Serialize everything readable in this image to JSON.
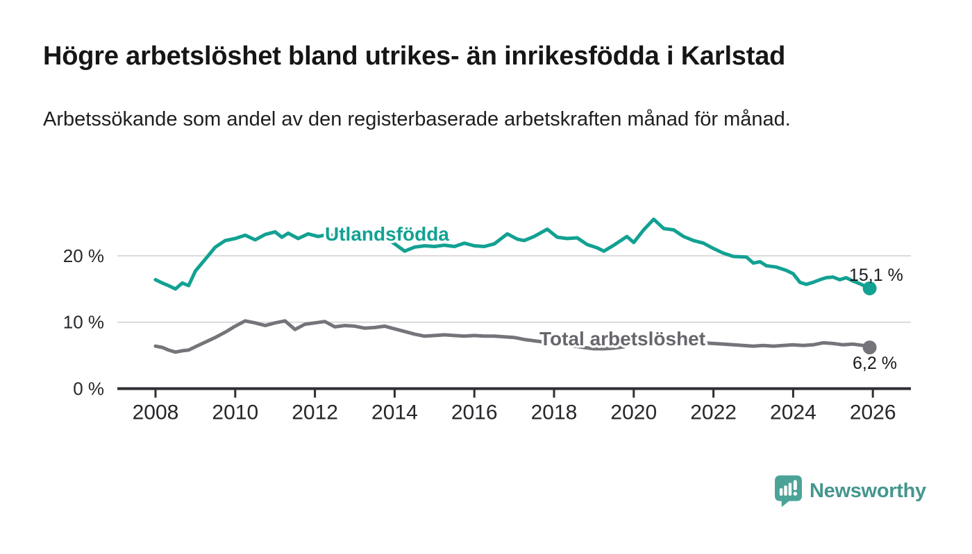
{
  "header": {
    "title": "Högre arbetslöshet bland utrikes- än inrikesfödda i Karlstad",
    "subtitle": "Arbetssökande som andel av den registerbaserade arbetskraften månad för månad."
  },
  "chart_data": {
    "type": "line",
    "unit": "%",
    "x_axis": {
      "range": [
        2007.9,
        2026.9
      ],
      "tick_labels": [
        "2008",
        "2010",
        "2012",
        "2014",
        "2016",
        "2018",
        "2020",
        "2022",
        "2024",
        "2026"
      ]
    },
    "y_axis": {
      "range": [
        0,
        27
      ],
      "ticks": [
        {
          "value": 0,
          "label": "0 %"
        },
        {
          "value": 10,
          "label": "10 %"
        },
        {
          "value": 20,
          "label": "20 %"
        }
      ],
      "grid": "horizontal"
    },
    "series": [
      {
        "name": "Utlandsfödda",
        "color": "#12A192",
        "end_value": 15.1,
        "end_label": "15,1 %",
        "points": [
          [
            2008.0,
            16.4
          ],
          [
            2008.17,
            15.9
          ],
          [
            2008.33,
            15.5
          ],
          [
            2008.5,
            15.0
          ],
          [
            2008.67,
            15.9
          ],
          [
            2008.83,
            15.5
          ],
          [
            2009.0,
            17.7
          ],
          [
            2009.25,
            19.5
          ],
          [
            2009.5,
            21.3
          ],
          [
            2009.75,
            22.3
          ],
          [
            2010.0,
            22.6
          ],
          [
            2010.25,
            23.1
          ],
          [
            2010.5,
            22.4
          ],
          [
            2010.75,
            23.2
          ],
          [
            2011.0,
            23.6
          ],
          [
            2011.17,
            22.8
          ],
          [
            2011.33,
            23.4
          ],
          [
            2011.58,
            22.6
          ],
          [
            2011.83,
            23.3
          ],
          [
            2012.08,
            22.9
          ],
          [
            2012.33,
            23.2
          ],
          [
            2012.58,
            22.9
          ],
          [
            2012.83,
            23.0
          ],
          [
            2013.08,
            22.9
          ],
          [
            2013.33,
            22.7
          ],
          [
            2013.58,
            22.8
          ],
          [
            2013.83,
            22.5
          ],
          [
            2014.0,
            21.8
          ],
          [
            2014.25,
            20.7
          ],
          [
            2014.5,
            21.3
          ],
          [
            2014.75,
            21.5
          ],
          [
            2015.0,
            21.4
          ],
          [
            2015.25,
            21.6
          ],
          [
            2015.5,
            21.4
          ],
          [
            2015.75,
            21.9
          ],
          [
            2016.0,
            21.5
          ],
          [
            2016.25,
            21.4
          ],
          [
            2016.5,
            21.8
          ],
          [
            2016.83,
            23.3
          ],
          [
            2017.08,
            22.5
          ],
          [
            2017.25,
            22.3
          ],
          [
            2017.5,
            22.9
          ],
          [
            2017.83,
            24.0
          ],
          [
            2018.08,
            22.8
          ],
          [
            2018.33,
            22.6
          ],
          [
            2018.58,
            22.7
          ],
          [
            2018.83,
            21.7
          ],
          [
            2019.08,
            21.2
          ],
          [
            2019.25,
            20.7
          ],
          [
            2019.5,
            21.6
          ],
          [
            2019.83,
            22.9
          ],
          [
            2020.0,
            22.0
          ],
          [
            2020.25,
            23.9
          ],
          [
            2020.5,
            25.5
          ],
          [
            2020.75,
            24.1
          ],
          [
            2021.0,
            23.9
          ],
          [
            2021.25,
            22.9
          ],
          [
            2021.5,
            22.3
          ],
          [
            2021.75,
            21.9
          ],
          [
            2022.0,
            21.1
          ],
          [
            2022.25,
            20.4
          ],
          [
            2022.5,
            19.9
          ],
          [
            2022.83,
            19.8
          ],
          [
            2023.0,
            18.9
          ],
          [
            2023.17,
            19.1
          ],
          [
            2023.33,
            18.5
          ],
          [
            2023.58,
            18.3
          ],
          [
            2023.83,
            17.8
          ],
          [
            2024.0,
            17.3
          ],
          [
            2024.17,
            16.0
          ],
          [
            2024.33,
            15.7
          ],
          [
            2024.5,
            16.0
          ],
          [
            2024.67,
            16.4
          ],
          [
            2024.83,
            16.7
          ],
          [
            2025.0,
            16.8
          ],
          [
            2025.17,
            16.4
          ],
          [
            2025.33,
            16.7
          ],
          [
            2025.5,
            16.2
          ],
          [
            2025.67,
            15.8
          ],
          [
            2025.92,
            15.1
          ]
        ]
      },
      {
        "name": "Total arbetslöshet",
        "color": "#75747A",
        "end_value": 6.2,
        "end_label": "6,2 %",
        "points": [
          [
            2008.0,
            6.4
          ],
          [
            2008.17,
            6.2
          ],
          [
            2008.33,
            5.8
          ],
          [
            2008.5,
            5.5
          ],
          [
            2008.67,
            5.7
          ],
          [
            2008.83,
            5.8
          ],
          [
            2009.0,
            6.3
          ],
          [
            2009.25,
            7.0
          ],
          [
            2009.5,
            7.7
          ],
          [
            2009.75,
            8.5
          ],
          [
            2010.0,
            9.4
          ],
          [
            2010.25,
            10.2
          ],
          [
            2010.5,
            9.9
          ],
          [
            2010.75,
            9.5
          ],
          [
            2011.0,
            9.9
          ],
          [
            2011.25,
            10.2
          ],
          [
            2011.5,
            8.9
          ],
          [
            2011.75,
            9.7
          ],
          [
            2012.0,
            9.9
          ],
          [
            2012.25,
            10.1
          ],
          [
            2012.5,
            9.3
          ],
          [
            2012.75,
            9.5
          ],
          [
            2013.0,
            9.4
          ],
          [
            2013.25,
            9.1
          ],
          [
            2013.5,
            9.2
          ],
          [
            2013.75,
            9.4
          ],
          [
            2014.0,
            9.0
          ],
          [
            2014.25,
            8.6
          ],
          [
            2014.5,
            8.2
          ],
          [
            2014.75,
            7.9
          ],
          [
            2015.0,
            8.0
          ],
          [
            2015.25,
            8.1
          ],
          [
            2015.5,
            8.0
          ],
          [
            2015.75,
            7.9
          ],
          [
            2016.0,
            8.0
          ],
          [
            2016.25,
            7.9
          ],
          [
            2016.5,
            7.9
          ],
          [
            2016.75,
            7.8
          ],
          [
            2017.0,
            7.7
          ],
          [
            2017.25,
            7.4
          ],
          [
            2017.5,
            7.2
          ],
          [
            2017.75,
            7.0
          ],
          [
            2018.0,
            6.9
          ],
          [
            2018.25,
            6.7
          ],
          [
            2018.5,
            6.4
          ],
          [
            2018.75,
            6.2
          ],
          [
            2019.0,
            6.0
          ],
          [
            2019.25,
            6.0
          ],
          [
            2019.5,
            6.1
          ],
          [
            2019.75,
            6.3
          ],
          [
            2020.0,
            6.8
          ],
          [
            2020.25,
            7.5
          ],
          [
            2020.5,
            7.9
          ],
          [
            2020.75,
            7.7
          ],
          [
            2021.0,
            7.3
          ],
          [
            2021.25,
            7.1
          ],
          [
            2021.5,
            6.9
          ],
          [
            2021.75,
            6.9
          ],
          [
            2022.0,
            6.8
          ],
          [
            2022.25,
            6.7
          ],
          [
            2022.5,
            6.6
          ],
          [
            2022.75,
            6.5
          ],
          [
            2023.0,
            6.4
          ],
          [
            2023.25,
            6.5
          ],
          [
            2023.5,
            6.4
          ],
          [
            2023.75,
            6.5
          ],
          [
            2024.0,
            6.6
          ],
          [
            2024.25,
            6.5
          ],
          [
            2024.5,
            6.6
          ],
          [
            2024.75,
            6.9
          ],
          [
            2025.0,
            6.8
          ],
          [
            2025.25,
            6.6
          ],
          [
            2025.5,
            6.7
          ],
          [
            2025.75,
            6.5
          ],
          [
            2025.92,
            6.2
          ]
        ]
      }
    ]
  },
  "footer": {
    "brand": "Newsworthy",
    "brand_text_color": "#45968E",
    "brand_icon_color": "#4BA398"
  }
}
